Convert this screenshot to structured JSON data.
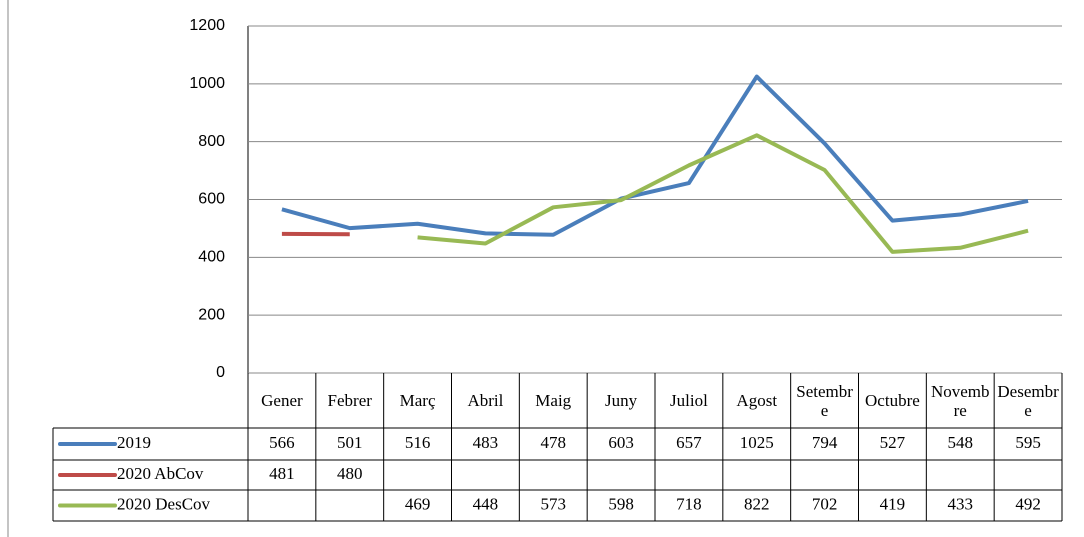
{
  "chart_data": {
    "type": "line",
    "categories": [
      "Gener",
      "Febrer",
      "Març",
      "Abril",
      "Maig",
      "Juny",
      "Juliol",
      "Agost",
      "Setembre",
      "Octubre",
      "Novembre",
      "Desembre"
    ],
    "series": [
      {
        "name": "2019",
        "color": "#4a7ebb",
        "values": [
          566,
          501,
          516,
          483,
          478,
          603,
          657,
          1025,
          794,
          527,
          548,
          595
        ]
      },
      {
        "name": "2020 AbCov",
        "color": "#be4b48",
        "values": [
          481,
          480,
          null,
          null,
          null,
          null,
          null,
          null,
          null,
          null,
          null,
          null
        ]
      },
      {
        "name": "2020 DesCov",
        "color": "#98b954",
        "values": [
          null,
          null,
          469,
          448,
          573,
          598,
          718,
          822,
          702,
          419,
          433,
          492
        ]
      }
    ],
    "ylim": [
      0,
      1200
    ],
    "yticks": [
      0,
      200,
      400,
      600,
      800,
      1000,
      1200
    ],
    "grid": true
  }
}
